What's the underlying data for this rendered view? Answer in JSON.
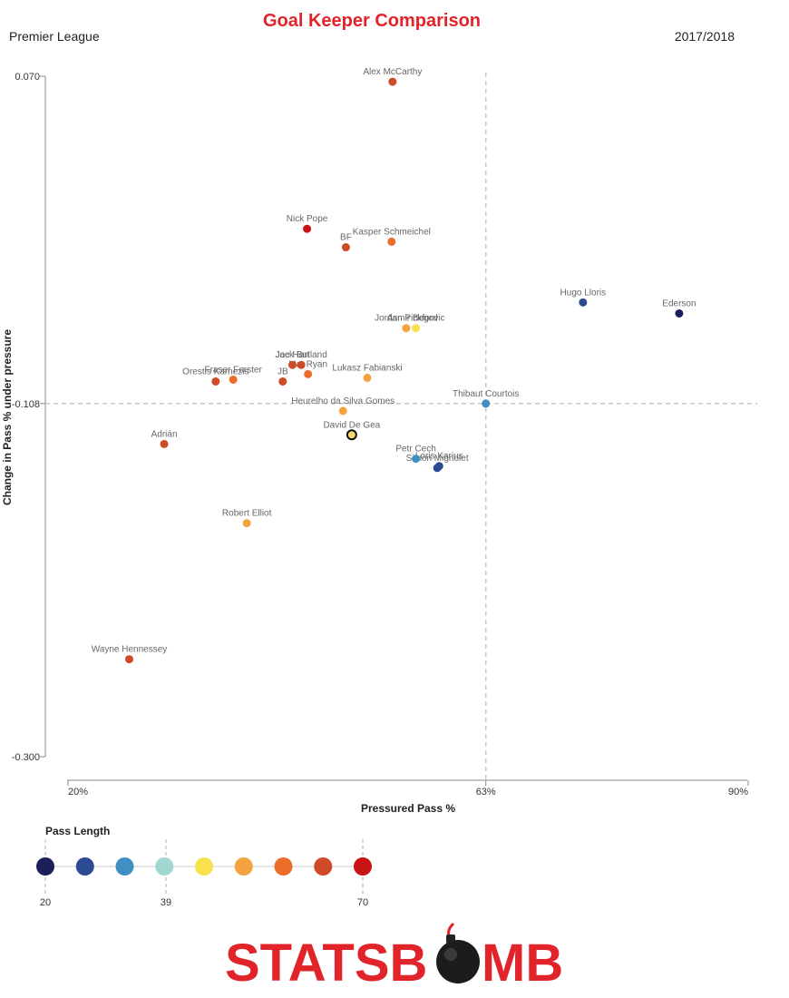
{
  "header": {
    "title": "Goal Keeper Comparison",
    "league": "Premier League",
    "season": "2017/2018"
  },
  "chart_data": {
    "type": "scatter",
    "xlabel": "Pressured Pass %",
    "ylabel": "Change in Pass % under pressure",
    "xlim": [
      20,
      90
    ],
    "ylim": [
      -0.3,
      0.07
    ],
    "x_ticks": [
      "20%",
      "63%",
      "90%"
    ],
    "y_ticks": [
      "0.070",
      "-0.108",
      "-0.300"
    ],
    "reference_lines": {
      "x": 63,
      "y": -0.108
    },
    "grid": false,
    "points": [
      {
        "name": "Alex McCarthy",
        "x": 53.4,
        "y": 0.067,
        "pass_length": 62
      },
      {
        "name": "Nick Pope",
        "x": 44.6,
        "y": -0.013,
        "pass_length": 70
      },
      {
        "name": "Kasper Schmeichel",
        "x": 53.3,
        "y": -0.02,
        "pass_length": 60
      },
      {
        "name": "BF",
        "x": 48.6,
        "y": -0.023,
        "pass_length": 64
      },
      {
        "name": "Hugo Lloris",
        "x": 73.0,
        "y": -0.053,
        "pass_length": 29
      },
      {
        "name": "Ederson",
        "x": 82.9,
        "y": -0.059,
        "pass_length": 20
      },
      {
        "name": "Asmir Begovic",
        "x": 55.8,
        "y": -0.067,
        "pass_length": 43
      },
      {
        "name": "Jordan Pickford",
        "x": 54.8,
        "y": -0.067,
        "pass_length": 53
      },
      {
        "name": "Joe Hart",
        "x": 43.1,
        "y": -0.087,
        "pass_length": 64
      },
      {
        "name": "Jack Butland",
        "x": 44.0,
        "y": -0.087,
        "pass_length": 62
      },
      {
        "name": "Mat Ryan",
        "x": 44.7,
        "y": -0.092,
        "pass_length": 57
      },
      {
        "name": "Lukasz Fabianski",
        "x": 50.8,
        "y": -0.094,
        "pass_length": 53
      },
      {
        "name": "Fraser Forster",
        "x": 37.0,
        "y": -0.095,
        "pass_length": 60
      },
      {
        "name": "Orestis Karnezis",
        "x": 35.2,
        "y": -0.096,
        "pass_length": 62
      },
      {
        "name": "JB",
        "x": 42.1,
        "y": -0.096,
        "pass_length": 62
      },
      {
        "name": "Thibaut Courtois",
        "x": 63.0,
        "y": -0.108,
        "pass_length": 32
      },
      {
        "name": "Heurelho da Silva Gomes",
        "x": 48.3,
        "y": -0.112,
        "pass_length": 51
      },
      {
        "name": "David De Gea",
        "x": 49.2,
        "y": -0.125,
        "pass_length": 45
      },
      {
        "name": "Adrián",
        "x": 29.9,
        "y": -0.13,
        "pass_length": 62
      },
      {
        "name": "Petr Cech",
        "x": 55.8,
        "y": -0.138,
        "pass_length": 35
      },
      {
        "name": "Loris Karius",
        "x": 58.2,
        "y": -0.142,
        "pass_length": 29
      },
      {
        "name": "Simon Mignolet",
        "x": 58.0,
        "y": -0.143,
        "pass_length": 27
      },
      {
        "name": "Robert Elliot",
        "x": 38.4,
        "y": -0.173,
        "pass_length": 53
      },
      {
        "name": "Wayne Hennessey",
        "x": 26.3,
        "y": -0.247,
        "pass_length": 66
      }
    ]
  },
  "legend": {
    "title": "Pass Length",
    "ticks": [
      "20",
      "39",
      "70"
    ],
    "colors": [
      "#1b1f5a",
      "#2b4a93",
      "#3f8fc3",
      "#a2d6d1",
      "#f9e04d",
      "#f4a340",
      "#ec6c2a",
      "#cf4a28",
      "#c81414"
    ]
  },
  "logo": {
    "text_left": "STATSB",
    "text_right": "MB"
  }
}
